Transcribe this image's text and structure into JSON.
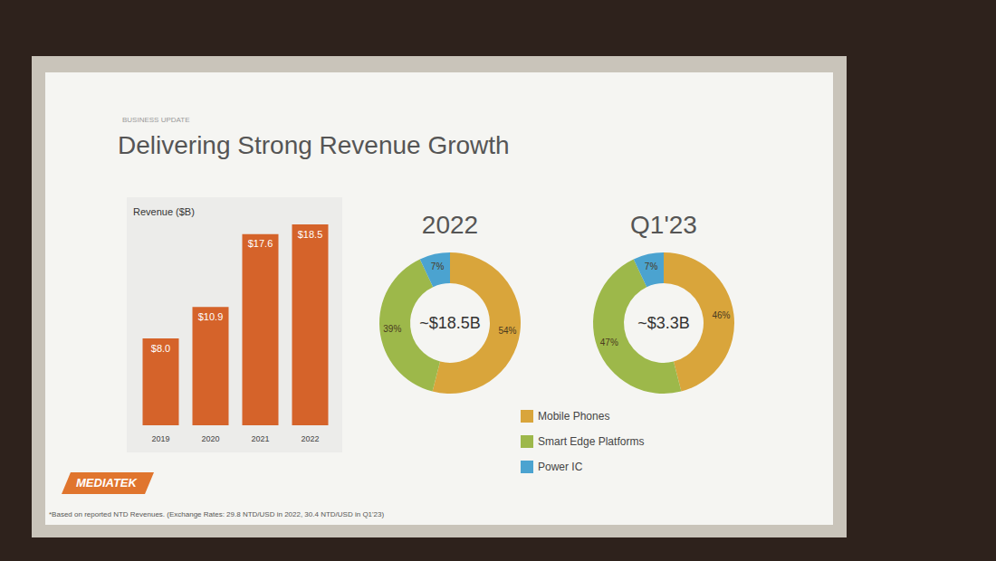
{
  "slide": {
    "section": "BUSINESS UPDATE",
    "title": "Delivering Strong Revenue Growth",
    "logo": "MEDIATEK",
    "footnote": "*Based on reported NTD Revenues. (Exchange Rates: 29.8 NTD/USD in 2022, 30.4 NTD/USD in Q1'23)"
  },
  "chart_data": [
    {
      "type": "bar",
      "title": "Revenue ($B)",
      "categories": [
        "2019",
        "2020",
        "2021",
        "2022"
      ],
      "values": [
        8.0,
        10.9,
        17.6,
        18.5
      ],
      "value_labels": [
        "$8.0",
        "$10.9",
        "$17.6",
        "$18.5"
      ],
      "color": "#d5632a",
      "ylim": [
        0,
        20
      ],
      "data_labels": true,
      "tick_labels": "x",
      "grid": false
    },
    {
      "type": "pie",
      "title": "2022",
      "center_label": "~$18.5B",
      "categories": [
        "Mobile Phones",
        "Smart Edge Platforms",
        "Power IC"
      ],
      "values": [
        54,
        39,
        7
      ],
      "value_labels": [
        "54%",
        "39%",
        "7%"
      ],
      "colors": [
        "#d9a53b",
        "#9db84a",
        "#4ba3d0"
      ],
      "data_labels": true,
      "legend": "bottom"
    },
    {
      "type": "pie",
      "title": "Q1'23",
      "center_label": "~$3.3B",
      "categories": [
        "Mobile Phones",
        "Smart Edge Platforms",
        "Power IC"
      ],
      "values": [
        46,
        47,
        7
      ],
      "value_labels": [
        "46%",
        "47%",
        "7%"
      ],
      "colors": [
        "#d9a53b",
        "#9db84a",
        "#4ba3d0"
      ],
      "data_labels": true,
      "legend": "bottom"
    }
  ]
}
